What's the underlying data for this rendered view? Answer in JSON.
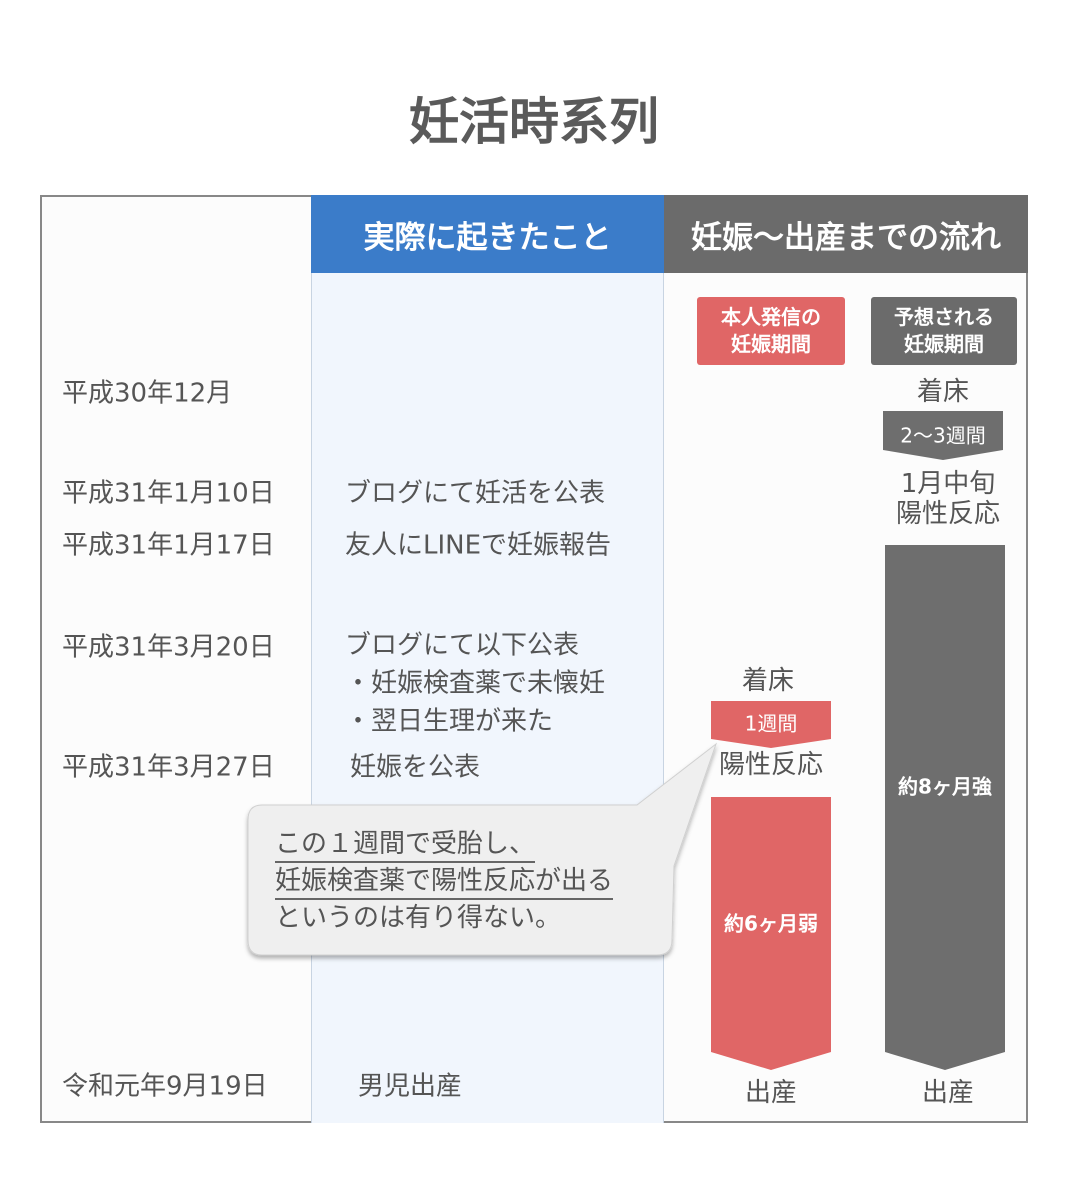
{
  "title": "妊活時系列",
  "headers": {
    "actual": "実際に起きたこと",
    "flow": "妊娠〜出産までの流れ"
  },
  "rows": [
    {
      "date": "平成30年12月",
      "event": ""
    },
    {
      "date": "平成31年1月10日",
      "event": "ブログにて妊活を公表"
    },
    {
      "date": "平成31年1月17日",
      "event": "友人にLINEで妊娠報告"
    },
    {
      "date": "平成31年3月20日",
      "event": "ブログにて以下公表",
      "sub": [
        "・妊娠検査薬で未懐妊",
        "・翌日生理が来た"
      ]
    },
    {
      "date": "平成31年3月27日",
      "event": "妊娠を公表"
    },
    {
      "date": "令和元年9月19日",
      "event": "男児出産"
    }
  ],
  "self_reported": {
    "label_line1": "本人発信の",
    "label_line2": "妊娠期間",
    "implant": "着床",
    "gap": "1週間",
    "positive": "陽性反応",
    "duration": "約6ヶ月弱",
    "birth": "出産",
    "color": "#e06666"
  },
  "expected": {
    "label_line1": "予想される",
    "label_line2": "妊娠期間",
    "implant": "着床",
    "gap": "2〜3週間",
    "positive_line1": "1月中旬",
    "positive_line2": "陽性反応",
    "duration": "約8ヶ月強",
    "birth": "出産",
    "color": "#6e6e6e"
  },
  "callout": {
    "line1": "この１週間で受胎し、",
    "line2": "妊娠検査薬で陽性反応が出る",
    "line3": "というのは有り得ない。"
  }
}
